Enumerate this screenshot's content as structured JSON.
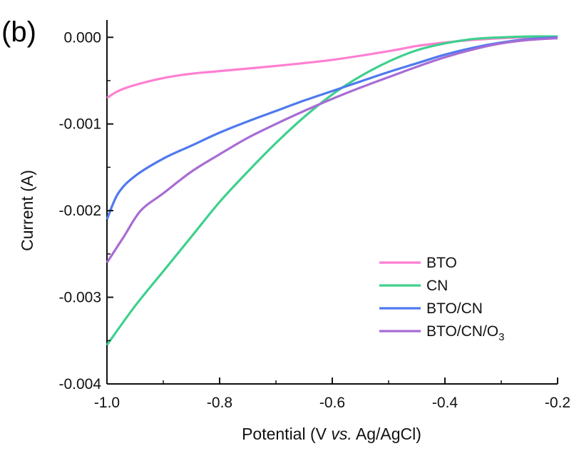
{
  "panel_label": "(b)",
  "chart_data": {
    "type": "line",
    "title": "",
    "xlabel_parts": [
      "Potential (V ",
      "vs.",
      " Ag/AgCl)"
    ],
    "ylabel": "Current (A)",
    "xlim": [
      -1.0,
      -0.2
    ],
    "ylim": [
      -0.004,
      0.0002
    ],
    "x_ticks": [
      -1.0,
      -0.8,
      -0.6,
      -0.4,
      -0.2
    ],
    "x_tick_labels": [
      "-1.0",
      "-0.8",
      "-0.6",
      "-0.4",
      "-0.2"
    ],
    "y_ticks": [
      0.0,
      -0.001,
      -0.002,
      -0.003,
      -0.004
    ],
    "y_tick_labels": [
      "0.000",
      "-0.001",
      "-0.002",
      "-0.003",
      "-0.004"
    ],
    "grid": false,
    "legend_position": "bottom-right",
    "series": [
      {
        "name": "BTO",
        "label_main": "BTO",
        "label_sub": "",
        "color": "#ff7fd1",
        "x": [
          -1.0,
          -0.98,
          -0.95,
          -0.9,
          -0.85,
          -0.8,
          -0.7,
          -0.6,
          -0.5,
          -0.45,
          -0.4,
          -0.35,
          -0.3,
          -0.25,
          -0.2
        ],
        "y": [
          -0.0007,
          -0.00062,
          -0.00055,
          -0.00047,
          -0.00042,
          -0.00039,
          -0.00033,
          -0.00026,
          -0.00016,
          -0.0001,
          -6e-05,
          -3e-05,
          -1e-05,
          0.0,
          1e-05
        ]
      },
      {
        "name": "CN",
        "label_main": "CN",
        "label_sub": "",
        "color": "#3ed08e",
        "x": [
          -1.0,
          -0.95,
          -0.9,
          -0.85,
          -0.8,
          -0.75,
          -0.7,
          -0.65,
          -0.6,
          -0.55,
          -0.5,
          -0.45,
          -0.4,
          -0.35,
          -0.3,
          -0.25,
          -0.2
        ],
        "y": [
          -0.00355,
          -0.0031,
          -0.0027,
          -0.0023,
          -0.0019,
          -0.00155,
          -0.00122,
          -0.00092,
          -0.00066,
          -0.00045,
          -0.00028,
          -0.00015,
          -7e-05,
          -2e-05,
          0.0,
          1e-05,
          1e-05
        ]
      },
      {
        "name": "BTO/CN",
        "label_main": "BTO/CN",
        "label_sub": "",
        "color": "#4f79ee",
        "x": [
          -1.0,
          -0.98,
          -0.95,
          -0.9,
          -0.85,
          -0.8,
          -0.75,
          -0.7,
          -0.65,
          -0.6,
          -0.55,
          -0.5,
          -0.45,
          -0.4,
          -0.35,
          -0.3,
          -0.25,
          -0.2
        ],
        "y": [
          -0.0021,
          -0.0018,
          -0.0016,
          -0.0014,
          -0.00125,
          -0.0011,
          -0.00097,
          -0.00085,
          -0.00073,
          -0.00062,
          -0.00051,
          -0.0004,
          -0.0003,
          -0.0002,
          -0.00012,
          -6e-05,
          -2e-05,
          0.0
        ]
      },
      {
        "name": "BTO/CN/O3",
        "label_main": "BTO/CN/O",
        "label_sub": "3",
        "color": "#a86cd4",
        "x": [
          -1.0,
          -0.97,
          -0.94,
          -0.9,
          -0.85,
          -0.8,
          -0.75,
          -0.7,
          -0.65,
          -0.6,
          -0.55,
          -0.5,
          -0.45,
          -0.4,
          -0.35,
          -0.3,
          -0.25,
          -0.2
        ],
        "y": [
          -0.0026,
          -0.0023,
          -0.002,
          -0.0018,
          -0.00155,
          -0.00135,
          -0.00116,
          -0.001,
          -0.00085,
          -0.00071,
          -0.00058,
          -0.00046,
          -0.00034,
          -0.00023,
          -0.00014,
          -7e-05,
          -3e-05,
          -1e-05
        ]
      }
    ]
  }
}
